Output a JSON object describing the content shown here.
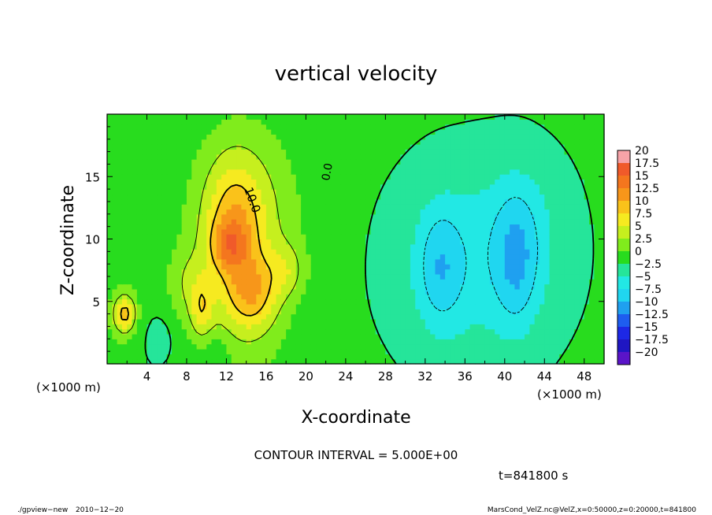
{
  "chart_data": {
    "type": "heatmap",
    "title": "vertical velocity",
    "xlabel": "X-coordinate",
    "ylabel": "Z-coordinate",
    "x_unit_left": "(×1000 m)",
    "x_unit_right": "(×1000 m)",
    "xlim": [
      0,
      50
    ],
    "ylim": [
      0,
      20
    ],
    "x_ticks": [
      4,
      8,
      12,
      16,
      20,
      24,
      28,
      32,
      36,
      40,
      44,
      48
    ],
    "x_tick_labels": [
      "4",
      "8",
      "12",
      "16",
      "20",
      "24",
      "28",
      "32",
      "36",
      "40",
      "44",
      "48"
    ],
    "y_ticks": [
      5,
      10,
      15
    ],
    "y_tick_labels": [
      "5",
      "10",
      "15"
    ],
    "colorbar": {
      "levels": [
        20,
        17.5,
        15,
        12.5,
        10,
        7.5,
        5,
        2.5,
        0,
        -2.5,
        -5,
        -7.5,
        -10,
        -12.5,
        -15,
        -17.5,
        -20
      ],
      "labels": [
        "20",
        "17.5",
        "15",
        "12.5",
        "10",
        "7.5",
        "5",
        "2.5",
        "0",
        "−2.5",
        "−5",
        "−7.5",
        "−10",
        "−12.5",
        "−15",
        "−17.5",
        "−20"
      ],
      "colors": [
        "#f7a3a8",
        "#f05a2a",
        "#f4761e",
        "#f7961a",
        "#fac21a",
        "#f6ea20",
        "#c6ef1e",
        "#80ec1c",
        "#28dc1e",
        "#25e59a",
        "#22e8e4",
        "#20d6f0",
        "#1fa0f0",
        "#1e5df0",
        "#1d28e6",
        "#1f16c2",
        "#5a14c8"
      ]
    },
    "field": {
      "background": 0.5,
      "features": [
        {
          "x": 12.2,
          "z": 9.6,
          "sx": 1.2,
          "sz": 1.3,
          "w": 6
        },
        {
          "x": 12.8,
          "z": 11.2,
          "sx": 2.0,
          "sz": 3.6,
          "w": 7
        },
        {
          "x": 13.5,
          "z": 6.5,
          "sx": 3.6,
          "sz": 6.5,
          "w": 4
        },
        {
          "x": 14.6,
          "z": 5.6,
          "sx": 1.7,
          "sz": 2.0,
          "w": 7
        },
        {
          "x": 9.5,
          "z": 4.4,
          "sx": 0.8,
          "sz": 1.6,
          "w": 6
        },
        {
          "x": 8.0,
          "z": 6.5,
          "sx": 1.5,
          "sz": 2.0,
          "w": 3
        },
        {
          "x": 1.8,
          "z": 4.0,
          "sx": 0.7,
          "sz": 1.0,
          "w": 8
        },
        {
          "x": 1.5,
          "z": 4.0,
          "sx": 1.3,
          "sz": 2.0,
          "w": 3
        },
        {
          "x": 18.0,
          "z": 7.5,
          "sx": 1.3,
          "sz": 1.5,
          "w": 4
        },
        {
          "x": 14.0,
          "z": 13.0,
          "sx": 4.2,
          "sz": 5.0,
          "w": 3
        },
        {
          "x": 5.2,
          "z": 2.0,
          "sx": 1.1,
          "sz": 1.5,
          "w": -2
        },
        {
          "x": 11.0,
          "z": 1.0,
          "sx": 1.0,
          "sz": 1.0,
          "w": -2
        },
        {
          "x": 33.5,
          "z": 7.8,
          "sx": 1.6,
          "sz": 3.4,
          "w": -5
        },
        {
          "x": 41.2,
          "z": 8.2,
          "sx": 1.5,
          "sz": 3.8,
          "w": -5
        },
        {
          "x": 37.0,
          "z": 8.0,
          "sx": 5.5,
          "sz": 5.5,
          "w": -4
        },
        {
          "x": 42.0,
          "z": 11.0,
          "sx": 3.0,
          "sz": 4.0,
          "w": -2
        }
      ]
    },
    "contour_labels": [
      "10.0",
      "0.0"
    ]
  },
  "annotations": {
    "contour_interval": "CONTOUR INTERVAL = 5.000E+00",
    "time": "t=841800 s",
    "program": "./gpview−new",
    "date": "2010−12−20",
    "source": "MarsCond_VelZ.nc@VelZ,x=0:50000,z=0:20000,t=841800"
  }
}
